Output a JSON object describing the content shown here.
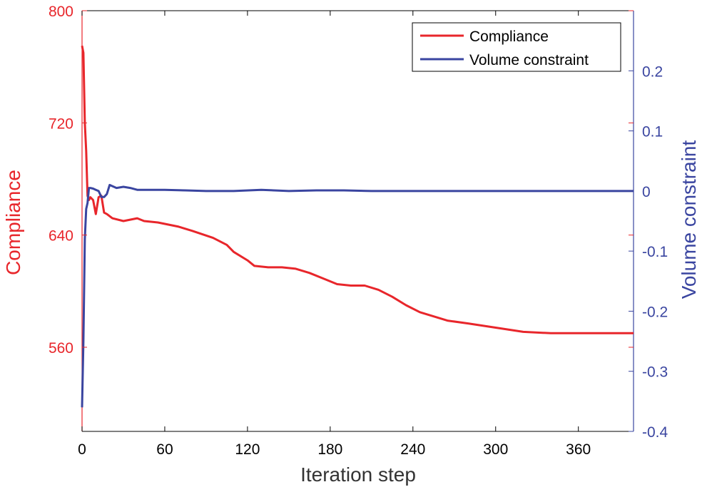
{
  "colors": {
    "left": "#e8262b",
    "right": "#3a45a0",
    "axis": "#000000"
  },
  "chart_data": {
    "type": "line",
    "xlabel": "Iteration step",
    "xlim": [
      0,
      400
    ],
    "xticks": [
      0,
      60,
      120,
      180,
      240,
      300,
      360
    ],
    "left_axis": {
      "label": "Compliance",
      "ylim": [
        500,
        800
      ],
      "ticks": [
        560,
        640,
        720,
        800
      ]
    },
    "right_axis": {
      "label": "Volume constraint",
      "ylim": [
        -0.4,
        0.3
      ],
      "ticks": [
        -0.4,
        -0.3,
        -0.2,
        -0.1,
        0,
        0.1,
        0.2
      ],
      "tick_labels": [
        "-0.4",
        "-0.3",
        "-0.2",
        "-0.1",
        "0",
        "0.1",
        "0.2"
      ]
    },
    "legend": {
      "position": "top-right",
      "entries": [
        "Compliance",
        "Volume constraint"
      ]
    },
    "series": [
      {
        "name": "Compliance",
        "axis": "left",
        "x": [
          0,
          1,
          2,
          3,
          4,
          5,
          6,
          8,
          10,
          12,
          14,
          16,
          18,
          22,
          30,
          40,
          45,
          55,
          70,
          80,
          95,
          105,
          110,
          120,
          125,
          135,
          145,
          155,
          165,
          175,
          185,
          195,
          205,
          215,
          225,
          235,
          245,
          255,
          265,
          280,
          300,
          320,
          340,
          360,
          380,
          400
        ],
        "values": [
          775,
          770,
          720,
          700,
          668,
          665,
          667,
          665,
          655,
          667,
          668,
          656,
          655,
          652,
          650,
          652,
          650,
          649,
          646,
          643,
          638,
          633,
          628,
          622,
          618,
          617,
          617,
          616,
          613,
          609,
          605,
          604,
          604,
          601,
          596,
          590,
          585,
          582,
          579,
          577,
          574,
          571,
          570,
          570,
          570,
          570
        ]
      },
      {
        "name": "Volume constraint",
        "axis": "right",
        "x": [
          0,
          1,
          2,
          3,
          4,
          5,
          6,
          8,
          10,
          12,
          14,
          16,
          18,
          20,
          25,
          30,
          35,
          40,
          45,
          60,
          75,
          90,
          110,
          130,
          150,
          170,
          190,
          210,
          240,
          270,
          300,
          330,
          360,
          400
        ],
        "values": [
          -0.36,
          -0.25,
          -0.08,
          -0.03,
          -0.02,
          0.005,
          0.005,
          0.004,
          0.002,
          0.0,
          -0.01,
          -0.01,
          -0.005,
          0.01,
          0.005,
          0.007,
          0.005,
          0.002,
          0.002,
          0.002,
          0.001,
          0.0,
          0.0,
          0.002,
          0.0,
          0.001,
          0.001,
          0.0,
          0.0,
          0.0,
          0.0,
          0.0,
          0.0,
          0.0
        ]
      }
    ]
  }
}
